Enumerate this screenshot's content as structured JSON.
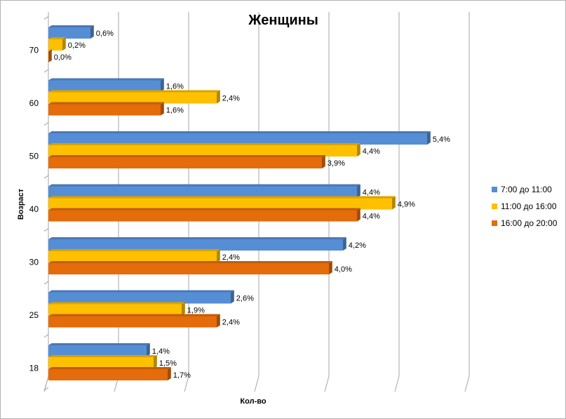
{
  "chart_data": {
    "type": "bar",
    "orientation": "horizontal",
    "style": "3d-clustered",
    "title": "Женщины",
    "xlabel": "Кол-во",
    "ylabel": "Возраст",
    "xlim": [
      0,
      6
    ],
    "categories": [
      "18",
      "25",
      "30",
      "40",
      "50",
      "60",
      "70"
    ],
    "series": [
      {
        "name": "7:00 до 11:00",
        "color": "#558ed5",
        "values": [
          1.4,
          2.6,
          4.2,
          4.4,
          5.4,
          1.6,
          0.6
        ],
        "labels": [
          "1,4%",
          "2,6%",
          "4,2%",
          "4,4%",
          "5,4%",
          "1,6%",
          "0,6%"
        ]
      },
      {
        "name": "11:00 до 16:00",
        "color": "#ffc000",
        "values": [
          1.5,
          1.9,
          2.4,
          4.9,
          4.4,
          2.4,
          0.2
        ],
        "labels": [
          "1,5%",
          "1,9%",
          "2,4%",
          "4,9%",
          "4,4%",
          "2,4%",
          "0,2%"
        ]
      },
      {
        "name": "16:00 до 20:00",
        "color": "#e46c0a",
        "values": [
          1.7,
          2.4,
          4.0,
          4.4,
          3.9,
          1.6,
          0.0
        ],
        "labels": [
          "1,7%",
          "2,4%",
          "4,0%",
          "4,4%",
          "3,9%",
          "1,6%",
          "0,0%"
        ]
      }
    ],
    "legend_position": "right",
    "gridlines": true
  }
}
